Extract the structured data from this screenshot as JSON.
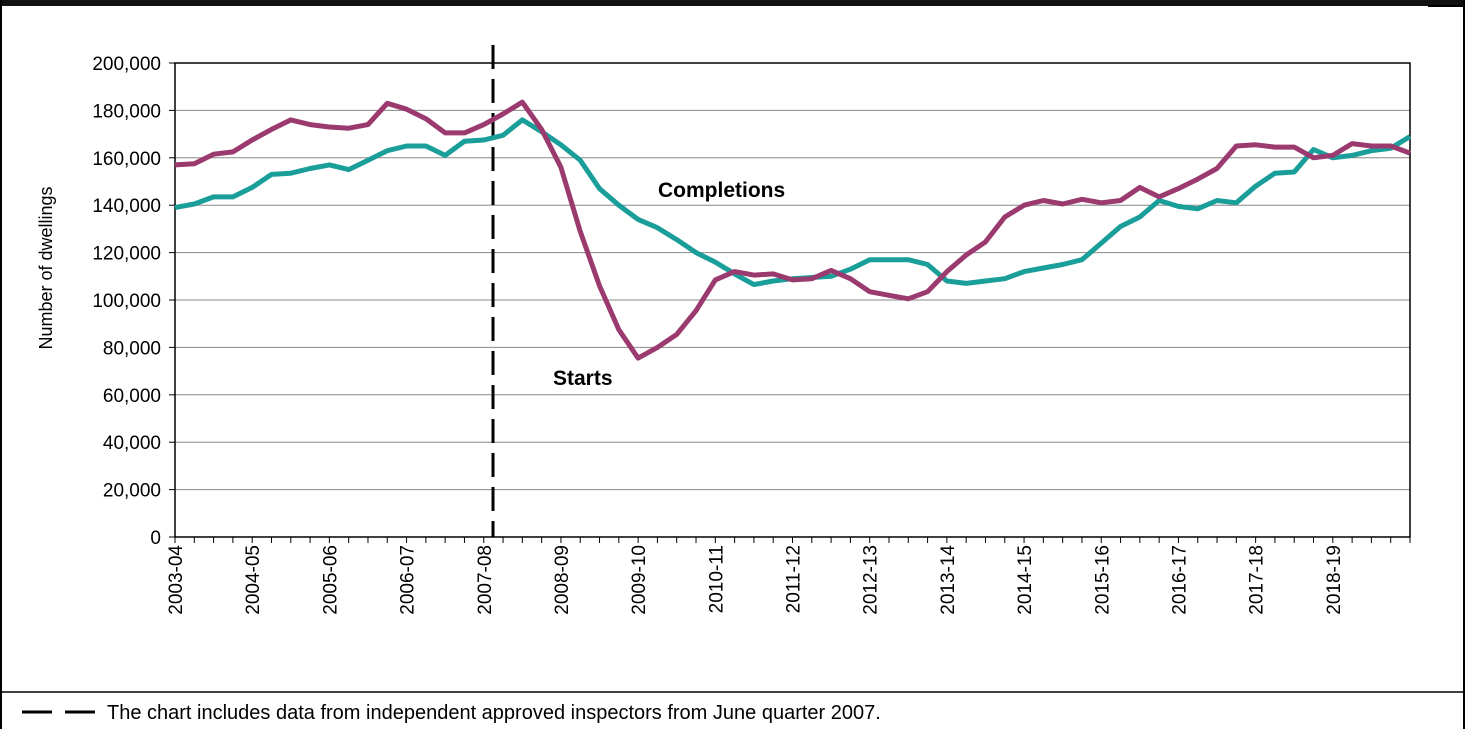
{
  "chart_data": {
    "type": "line",
    "y_label": "Number  of dwellings",
    "categories": [
      "2003-04",
      null,
      null,
      null,
      "2004-05",
      null,
      null,
      null,
      "2005-06",
      null,
      null,
      null,
      "2006-07",
      null,
      null,
      null,
      "2007-08",
      null,
      null,
      null,
      "2008-09",
      null,
      null,
      null,
      "2009-10",
      null,
      null,
      null,
      "2010-11",
      null,
      null,
      null,
      "2011-12",
      null,
      null,
      null,
      "2012-13",
      null,
      null,
      null,
      "2013-14",
      null,
      null,
      null,
      "2014-15",
      null,
      null,
      null,
      "2015-16",
      null,
      null,
      null,
      "2016-17",
      null,
      null,
      null,
      "2017-18",
      null,
      null,
      null,
      "2018-19",
      null,
      null,
      null,
      null
    ],
    "series": [
      {
        "name": "Completions",
        "color": "#1a9e9a",
        "values": [
          139000,
          140500,
          143500,
          143500,
          147500,
          153000,
          153500,
          155500,
          157000,
          155000,
          159000,
          163000,
          165000,
          165000,
          161000,
          167000,
          167500,
          169500,
          176000,
          171000,
          165500,
          159000,
          147000,
          140000,
          134000,
          130500,
          125500,
          120000,
          116000,
          111000,
          106500,
          108000,
          109000,
          109500,
          110000,
          113000,
          117000,
          117000,
          117000,
          115000,
          108000,
          107000,
          108000,
          109000,
          112000,
          113500,
          115000,
          117000,
          124000,
          131000,
          135000,
          142000,
          139500,
          138500,
          142000,
          141000,
          148000,
          153500,
          154000,
          163500,
          160000,
          161000,
          163000,
          164000,
          169000
        ]
      },
      {
        "name": "Starts",
        "color": "#9b3a6e",
        "values": [
          157000,
          157500,
          161500,
          162500,
          167500,
          172000,
          176000,
          174000,
          173000,
          172500,
          174000,
          183000,
          180500,
          176500,
          170500,
          170500,
          174000,
          178500,
          183500,
          172000,
          156000,
          129000,
          106000,
          87500,
          75500,
          80000,
          85500,
          95500,
          108500,
          112000,
          110500,
          111000,
          108500,
          109000,
          112500,
          109000,
          103500,
          102000,
          100500,
          103500,
          112000,
          119000,
          124500,
          135000,
          140000,
          142000,
          140500,
          142500,
          141000,
          142000,
          147500,
          143500,
          147000,
          151000,
          155500,
          165000,
          165500,
          164500,
          164500,
          160000,
          161000,
          166000,
          165000,
          165000,
          162000
        ]
      }
    ],
    "ylim": [
      0,
      200000
    ],
    "yticks": [
      0,
      {
        "value": 20000,
        "label": "20,000"
      },
      {
        "value": 40000,
        "label": "40,000"
      },
      {
        "value": 60000,
        "label": "60,000"
      },
      {
        "value": 80000,
        "label": "80,000"
      },
      {
        "value": 100000,
        "label": "100,000"
      },
      {
        "value": 120000,
        "label": "120,000"
      },
      {
        "value": 140000,
        "label": "140,000"
      },
      {
        "value": 160000,
        "label": "160,000"
      },
      {
        "value": 180000,
        "label": "180,000"
      },
      {
        "value": 200000,
        "label": "200,000"
      }
    ],
    "grid": true,
    "footnote": "The chart includes data from independent approved inspectors from June quarter 2007."
  }
}
